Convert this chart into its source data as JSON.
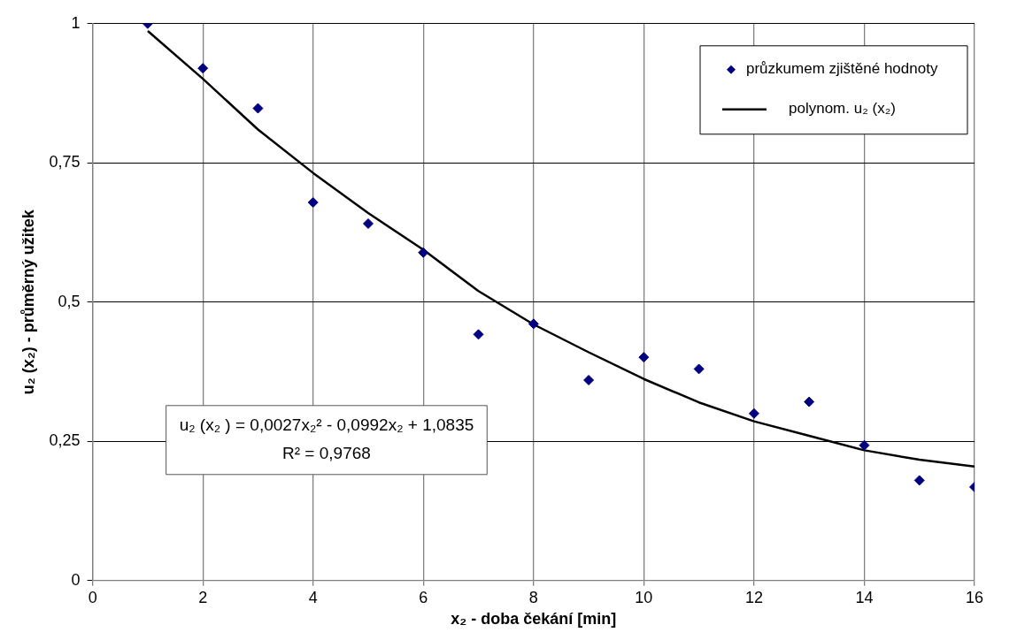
{
  "chart_data": {
    "type": "scatter",
    "xlabel": "x₂ - doba čekání [min]",
    "ylabel": "u₂ (x₂) - průměrný užitek",
    "x": [
      1,
      2,
      3,
      4,
      5,
      6,
      7,
      8,
      9,
      10,
      11,
      12,
      13,
      14,
      15,
      16
    ],
    "series": [
      {
        "name": "průzkumem zjištěné hodnoty",
        "color": "#000080",
        "marker": "diamond",
        "values": [
          1.0,
          0.92,
          0.848,
          0.679,
          0.641,
          0.589,
          0.442,
          0.461,
          0.36,
          0.401,
          0.38,
          0.3,
          0.321,
          0.243,
          0.18,
          0.168
        ]
      },
      {
        "name": "polynom. u₂ (x₂)",
        "type": "line",
        "color": "#000000",
        "marker": "none",
        "line_style": "solid",
        "values": [
          0.987,
          0.901,
          0.81,
          0.732,
          0.66,
          0.594,
          0.52,
          0.46,
          0.41,
          0.362,
          0.32,
          0.286,
          0.26,
          0.234,
          0.217,
          0.205
        ]
      }
    ],
    "xlim": [
      0,
      16
    ],
    "xticks": [
      0,
      2,
      4,
      6,
      8,
      10,
      12,
      14,
      16
    ],
    "ylim": [
      0,
      1
    ],
    "yticks": [
      0,
      {
        "value": 0.25,
        "label": "0,25"
      },
      {
        "value": 0.5,
        "label": "0,5"
      },
      {
        "value": 0.75,
        "label": "0,75"
      },
      1
    ],
    "grid": true,
    "legend": "top right",
    "annotations": [
      "u₂ (x₂ ) = 0,0027x₂² - 0,0992x₂ + 1,0835",
      "R² = 0,9768"
    ]
  }
}
